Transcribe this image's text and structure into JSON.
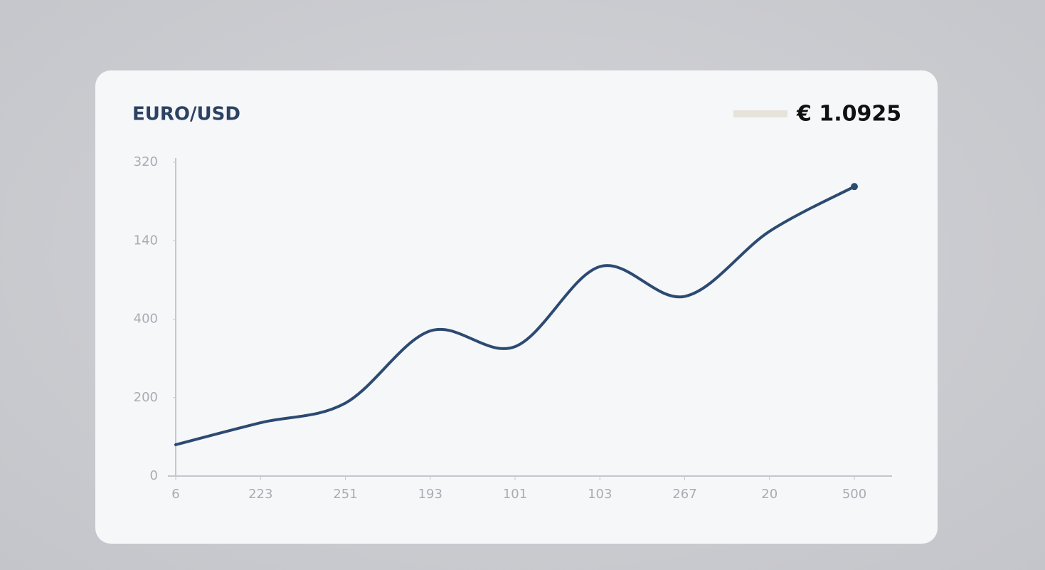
{
  "chart_data": {
    "type": "line",
    "title": "EURO/USD",
    "price": "€ 1.0925",
    "price_swatch_color": "#e6e3dc",
    "categories": [
      "6",
      "223",
      "251",
      "193",
      "101",
      "103",
      "267",
      "20",
      "500"
    ],
    "series": [
      {
        "name": "EURO/USD",
        "color": "#2c4a72",
        "values": [
          0.4,
          0.68,
          0.93,
          1.85,
          1.65,
          2.67,
          2.29,
          3.12,
          3.69
        ]
      }
    ],
    "ylim": [
      0,
      4
    ],
    "yticks": [
      0,
      {
        "value": 1,
        "label": "200"
      },
      {
        "value": 2,
        "label": "400"
      },
      {
        "value": 3,
        "label": "140"
      },
      {
        "value": 4,
        "label": "320"
      }
    ],
    "grid": false
  }
}
